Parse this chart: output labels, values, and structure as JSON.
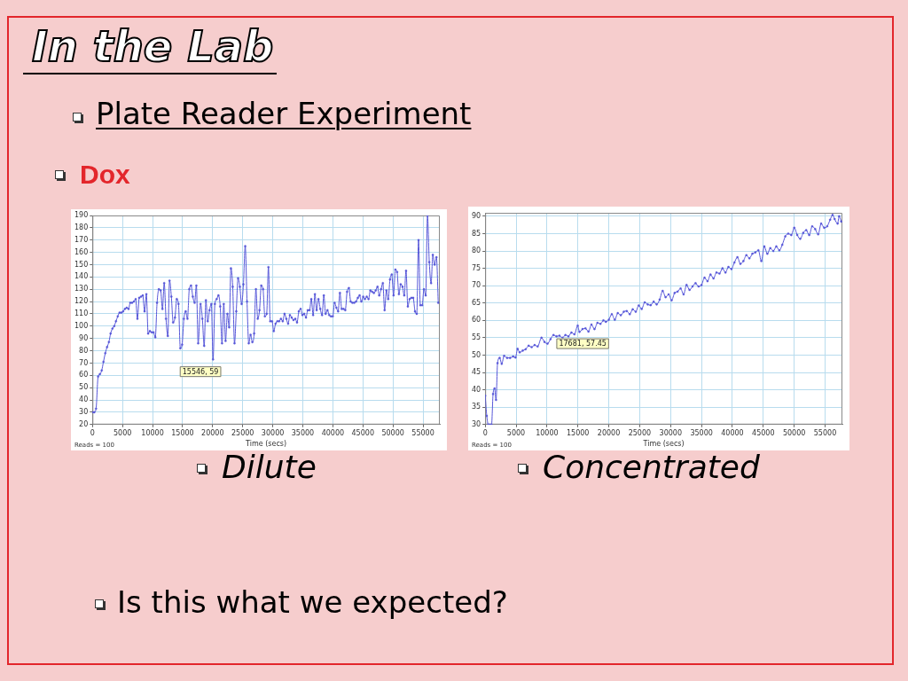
{
  "chart_data": [
    {
      "type": "other",
      "title": "In the Lab",
      "subtitle": "Plate Reader Experiment",
      "annotations": [
        "Dox",
        "Is this what we expected?"
      ]
    },
    {
      "type": "line",
      "title": "Dilute",
      "xlabel": "Time (secs)",
      "x": [
        0,
        300,
        600,
        940,
        1240,
        1540,
        1830,
        2130,
        2430,
        2730,
        3020,
        3320,
        3620,
        3910,
        4210,
        4510,
        4810,
        5100,
        5400,
        5700,
        6000,
        6290,
        6590,
        6890,
        7190,
        7480,
        7780,
        8080,
        8370,
        8670,
        8970,
        9270,
        9560,
        9860,
        10160,
        10460,
        10750,
        11050,
        11350,
        11650,
        11940,
        12240,
        12540,
        12830,
        13130,
        13430,
        13730,
        14030,
        14320,
        14620,
        14920,
        15210,
        15510,
        15810,
        16110,
        16400,
        16700,
        17000,
        17290,
        17590,
        17990,
        18290,
        18590,
        18880,
        19180,
        19480,
        19780,
        20070,
        20370,
        20670,
        20960,
        21260,
        21560,
        21850,
        22150,
        22450,
        22750,
        23040,
        23340,
        23640,
        23930,
        24230,
        24530,
        24820,
        25120,
        25420,
        25720,
        26010,
        26310,
        26610,
        26900,
        27200,
        27500,
        27800,
        28090,
        28390,
        28690,
        28990,
        29280,
        29580,
        29880,
        30170,
        30470,
        30770,
        31070,
        31360,
        31660,
        31960,
        32260,
        32560,
        32850,
        33150,
        33450,
        33750,
        34040,
        34340,
        34640,
        34940,
        35230,
        35530,
        35830,
        36120,
        36420,
        36720,
        37020,
        37310,
        37610,
        37910,
        38210,
        38500,
        38800,
        39100,
        39400,
        39690,
        39990,
        40290,
        40590,
        40880,
        41180,
        41480,
        41780,
        42070,
        42370,
        42670,
        42970,
        43260,
        43560,
        43860,
        44160,
        44450,
        44750,
        45050,
        45340,
        45640,
        45940,
        46240,
        46540,
        46830,
        47130,
        47430,
        47720,
        48020,
        48320,
        48610,
        48910,
        49210,
        49510,
        49800,
        50100,
        50400,
        50690,
        50990,
        51290,
        51590,
        51880,
        52180,
        52480,
        52770,
        53070,
        53370,
        53670,
        53960,
        54260,
        54560,
        54860,
        55160,
        55450,
        55750,
        56050,
        56350,
        56640,
        56940,
        57240,
        57540
      ],
      "values": [
        30,
        30,
        33,
        59,
        61,
        64,
        71,
        78,
        83,
        87,
        94,
        98,
        100,
        104,
        108,
        111,
        111,
        112,
        114,
        115,
        114,
        119,
        119,
        120,
        122,
        106,
        123,
        124,
        125,
        112,
        126,
        94,
        96,
        95,
        95,
        91,
        119,
        130,
        129,
        114,
        135,
        106,
        92,
        137,
        124,
        103,
        107,
        122,
        118,
        82,
        85,
        106,
        112,
        106,
        130,
        133,
        124,
        119,
        133,
        86,
        118,
        106,
        84,
        121,
        104,
        113,
        118,
        73,
        118,
        122,
        125,
        116,
        86,
        118,
        88,
        110,
        99,
        147,
        132,
        86,
        112,
        139,
        132,
        118,
        134,
        165,
        120,
        86,
        93,
        87,
        94,
        130,
        106,
        113,
        133,
        130,
        108,
        110,
        148,
        104,
        104,
        96,
        102,
        104,
        104,
        106,
        104,
        110,
        106,
        102,
        109,
        107,
        105,
        106,
        103,
        112,
        114,
        109,
        110,
        107,
        113,
        113,
        122,
        109,
        126,
        113,
        122,
        114,
        109,
        125,
        110,
        113,
        109,
        108,
        108,
        119,
        115,
        112,
        127,
        114,
        114,
        113,
        128,
        131,
        120,
        119,
        119,
        120,
        123,
        125,
        120,
        124,
        122,
        124,
        122,
        129,
        128,
        127,
        129,
        132,
        125,
        130,
        135,
        113,
        129,
        122,
        138,
        142,
        125,
        146,
        144,
        126,
        134,
        132,
        125,
        145,
        116,
        122,
        123,
        123,
        112,
        110,
        170,
        117,
        117,
        130,
        125,
        190,
        152,
        135,
        158,
        150,
        156,
        119
      ],
      "color": "#5656d8",
      "xlim": [
        0,
        57800
      ],
      "xticks": [
        0,
        5000,
        10000,
        15000,
        20000,
        25000,
        30000,
        35000,
        40000,
        45000,
        50000,
        55000
      ],
      "ylim": [
        20,
        190
      ],
      "yticks": [
        20,
        30,
        40,
        50,
        60,
        70,
        80,
        90,
        100,
        110,
        120,
        130,
        140,
        150,
        160,
        170,
        180,
        190
      ],
      "grid": true,
      "marker": "circle",
      "annotations": [
        "15546, 59",
        "Reads = 100"
      ]
    },
    {
      "type": "line",
      "title": "Concentrated",
      "xlabel": "Time (secs)",
      "x": [
        0,
        257,
        499,
        789,
        1031,
        1273,
        1515,
        1757,
        1999,
        2338,
        2677,
        3064,
        3548,
        4032,
        4516,
        4903,
        5242,
        5580,
        6065,
        6549,
        7033,
        7517,
        8001,
        8485,
        9114,
        9598,
        10082,
        10566,
        11050,
        11534,
        12018,
        12502,
        12986,
        13470,
        13954,
        14438,
        14970,
        15261,
        15745,
        16229,
        16713,
        17197,
        17681,
        18165,
        18649,
        19133,
        19520,
        20004,
        20488,
        20972,
        21456,
        21940,
        22424,
        22908,
        23392,
        23876,
        24360,
        24844,
        25328,
        25812,
        26296,
        26780,
        27264,
        27748,
        28232,
        28716,
        29200,
        29684,
        30168,
        30652,
        31136,
        31620,
        32104,
        32588,
        33072,
        33556,
        34040,
        34524,
        35008,
        35492,
        35976,
        36460,
        36944,
        37428,
        37912,
        38396,
        38880,
        39364,
        39848,
        40332,
        40816,
        41300,
        41784,
        42268,
        42752,
        43236,
        43720,
        44204,
        44688,
        45172,
        45656,
        46140,
        46624,
        47108,
        47592,
        48076,
        48560,
        49044,
        49528,
        50012,
        50496,
        50980,
        51464,
        51948,
        52432,
        52916,
        53400,
        53884,
        54368,
        54852,
        55336,
        55820,
        56207,
        56546,
        57030,
        57272,
        57611
      ],
      "values": [
        38.3,
        32.5,
        30,
        30,
        30,
        38.8,
        40.4,
        37.1,
        47.7,
        49.2,
        47.5,
        49.8,
        49.2,
        49.2,
        49.6,
        49.3,
        51.8,
        50.8,
        51.3,
        51.7,
        52.7,
        52.3,
        52.9,
        52.5,
        55,
        53.8,
        53.3,
        54.6,
        55.8,
        55.4,
        55.6,
        55,
        55.8,
        55.4,
        56.5,
        56,
        58.5,
        56.7,
        57.5,
        57.7,
        56.8,
        58.8,
        57.5,
        59.3,
        59,
        60,
        59.6,
        60.2,
        61.8,
        60.2,
        62.1,
        61.5,
        62.5,
        62.7,
        61.8,
        63.2,
        62.5,
        64.3,
        63.3,
        65.2,
        64.6,
        64.4,
        65.4,
        64.6,
        66,
        68.5,
        66.7,
        67.5,
        65.8,
        67.9,
        68.3,
        69.2,
        67.5,
        70.2,
        68.8,
        69.8,
        70.7,
        69.8,
        70.2,
        72.3,
        71.3,
        73.2,
        72.1,
        73.8,
        73.5,
        75,
        73.8,
        75.4,
        74.8,
        76.7,
        78.2,
        76.3,
        77.1,
        78.8,
        77.9,
        79.2,
        79.6,
        80.2,
        77.1,
        81.3,
        79.2,
        80.8,
        80,
        81.3,
        80.2,
        81.8,
        84.2,
        85,
        84.6,
        86.7,
        84.6,
        83.5,
        85.2,
        86,
        84.6,
        87.1,
        86.3,
        84.8,
        87.9,
        86.7,
        87.1,
        89,
        90.4,
        89.2,
        87.9,
        90,
        88.5
      ],
      "color": "#5656d8",
      "xlim": [
        0,
        57800
      ],
      "xticks": [
        0,
        5000,
        10000,
        15000,
        20000,
        25000,
        30000,
        35000,
        40000,
        45000,
        50000,
        55000
      ],
      "ylim": [
        30,
        91
      ],
      "yticks": [
        30,
        35,
        40,
        45,
        50,
        55,
        60,
        65,
        70,
        75,
        80,
        85,
        90
      ],
      "grid": true,
      "marker": "circle",
      "annotations": [
        "17681, 57.45",
        "Reads = 100"
      ]
    }
  ]
}
